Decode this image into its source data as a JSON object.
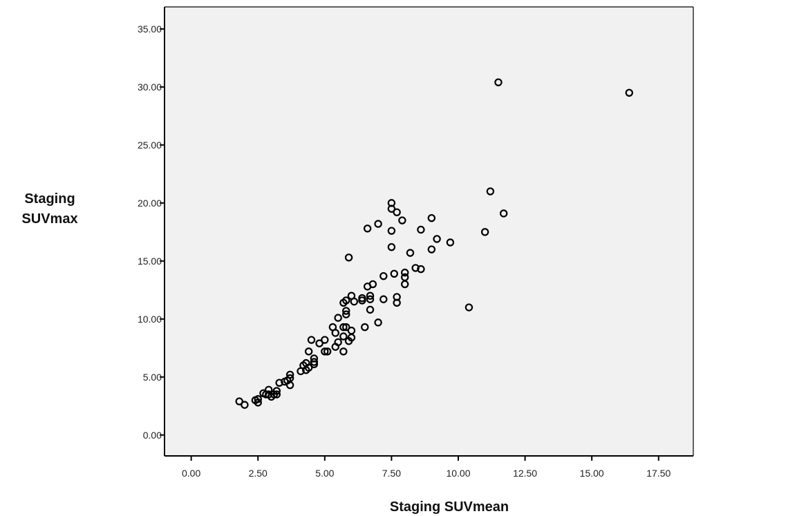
{
  "chart_data": {
    "type": "scatter",
    "title": "",
    "xlabel": "Staging SUVmean",
    "ylabel_lines": [
      "Staging",
      "SUVmax"
    ],
    "xlim": [
      -1.0,
      18.8
    ],
    "ylim": [
      -1.8,
      36.9
    ],
    "x_ticks": [
      0,
      2.5,
      5,
      7.5,
      10,
      12.5,
      15,
      17.5
    ],
    "x_tick_labels": [
      "0.00",
      "2.50",
      "5.00",
      "7.50",
      "10.00",
      "12.50",
      "15.00",
      "17.50"
    ],
    "y_ticks": [
      0,
      5,
      10,
      15,
      20,
      25,
      30,
      35
    ],
    "y_tick_labels": [
      "0.00",
      "5.00",
      "10.00",
      "15.00",
      "20.00",
      "25.00",
      "30.00",
      "35.00"
    ],
    "grid": false,
    "plot_background": "#f1f1f1",
    "marker_color": "#000000",
    "points": [
      [
        1.8,
        2.9
      ],
      [
        2.0,
        2.6
      ],
      [
        2.4,
        3.0
      ],
      [
        2.5,
        3.1
      ],
      [
        2.5,
        2.8
      ],
      [
        2.7,
        3.6
      ],
      [
        2.8,
        3.5
      ],
      [
        2.9,
        3.9
      ],
      [
        2.9,
        3.5
      ],
      [
        3.0,
        3.3
      ],
      [
        3.1,
        3.5
      ],
      [
        3.2,
        3.8
      ],
      [
        3.2,
        3.5
      ],
      [
        3.3,
        4.5
      ],
      [
        3.5,
        4.6
      ],
      [
        3.6,
        4.7
      ],
      [
        3.7,
        5.2
      ],
      [
        3.7,
        4.9
      ],
      [
        3.7,
        4.3
      ],
      [
        4.1,
        5.5
      ],
      [
        4.2,
        6.0
      ],
      [
        4.3,
        6.2
      ],
      [
        4.3,
        5.6
      ],
      [
        4.4,
        5.8
      ],
      [
        4.4,
        7.2
      ],
      [
        4.5,
        8.2
      ],
      [
        4.6,
        6.6
      ],
      [
        4.6,
        6.3
      ],
      [
        4.6,
        6.1
      ],
      [
        4.8,
        7.9
      ],
      [
        5.0,
        8.2
      ],
      [
        5.0,
        7.2
      ],
      [
        5.1,
        7.2
      ],
      [
        5.3,
        9.3
      ],
      [
        5.4,
        8.8
      ],
      [
        5.4,
        7.6
      ],
      [
        5.5,
        10.1
      ],
      [
        5.5,
        8.0
      ],
      [
        5.7,
        9.3
      ],
      [
        5.7,
        8.5
      ],
      [
        5.7,
        7.2
      ],
      [
        5.7,
        11.4
      ],
      [
        5.8,
        11.6
      ],
      [
        5.8,
        10.7
      ],
      [
        5.8,
        10.4
      ],
      [
        5.8,
        9.3
      ],
      [
        5.9,
        15.3
      ],
      [
        5.9,
        8.1
      ],
      [
        6.0,
        12.0
      ],
      [
        6.0,
        9.0
      ],
      [
        6.0,
        8.4
      ],
      [
        6.1,
        11.5
      ],
      [
        6.4,
        11.8
      ],
      [
        6.4,
        11.6
      ],
      [
        6.5,
        9.3
      ],
      [
        6.6,
        17.8
      ],
      [
        6.6,
        12.8
      ],
      [
        6.7,
        12.0
      ],
      [
        6.7,
        11.7
      ],
      [
        6.7,
        10.8
      ],
      [
        6.8,
        13.0
      ],
      [
        7.0,
        18.2
      ],
      [
        7.0,
        9.7
      ],
      [
        7.2,
        13.7
      ],
      [
        7.2,
        11.7
      ],
      [
        7.5,
        20.0
      ],
      [
        7.5,
        19.5
      ],
      [
        7.5,
        17.6
      ],
      [
        7.5,
        16.2
      ],
      [
        7.6,
        13.9
      ],
      [
        7.7,
        19.2
      ],
      [
        7.7,
        11.9
      ],
      [
        7.7,
        11.4
      ],
      [
        7.9,
        18.5
      ],
      [
        8.0,
        14.0
      ],
      [
        8.0,
        13.6
      ],
      [
        8.0,
        13.0
      ],
      [
        8.2,
        15.7
      ],
      [
        8.4,
        14.4
      ],
      [
        8.6,
        17.7
      ],
      [
        8.6,
        14.3
      ],
      [
        9.0,
        18.7
      ],
      [
        9.0,
        16.0
      ],
      [
        9.2,
        16.9
      ],
      [
        9.7,
        16.6
      ],
      [
        10.4,
        11.0
      ],
      [
        11.0,
        17.5
      ],
      [
        11.2,
        21.0
      ],
      [
        11.5,
        30.4
      ],
      [
        11.7,
        19.1
      ],
      [
        16.4,
        29.5
      ]
    ]
  }
}
